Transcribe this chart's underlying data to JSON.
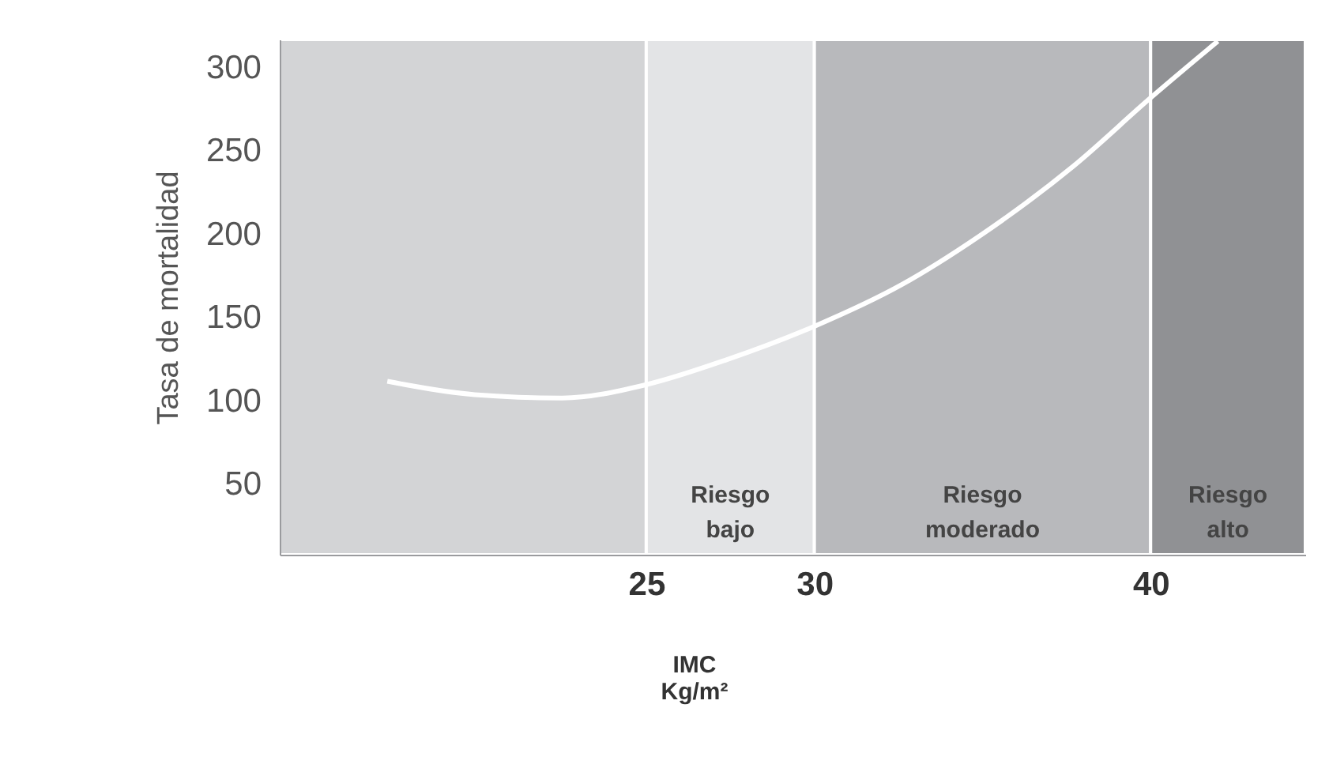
{
  "chart_data": {
    "type": "line",
    "xlabel": "IMC\nKg/m²",
    "ylabel": "Tasa de mortalidad",
    "xlim": [
      14.1,
      44.6
    ],
    "ylim": [
      8,
      317
    ],
    "xticks": [
      25,
      30,
      40
    ],
    "yticks": [
      50,
      100,
      150,
      200,
      250,
      300
    ],
    "marker": "none",
    "line_style": "solid",
    "series": [
      {
        "color": "#ffffff",
        "x": [
          17.3,
          19.9,
          22.5,
          25,
          27.4,
          30,
          32.6,
          34.9,
          37.7,
          40,
          42
        ],
        "values": [
          112,
          104,
          102,
          110,
          125,
          145,
          170,
          199,
          241,
          282,
          316
        ]
      }
    ],
    "bands": [
      {
        "axis": "x",
        "from": 14.1,
        "to": 25,
        "label": null,
        "color": "#d3d4d6"
      },
      {
        "axis": "x",
        "from": 25,
        "to": 30,
        "label": "Riesgo\nbajo",
        "color": "#e3e4e6"
      },
      {
        "axis": "x",
        "from": 30,
        "to": 40,
        "label": "Riesgo\nmoderado",
        "color": "#b8b9bc"
      },
      {
        "axis": "x",
        "from": 40,
        "to": 44.6,
        "label": "Riesgo\nalto",
        "color": "#909194"
      }
    ]
  }
}
